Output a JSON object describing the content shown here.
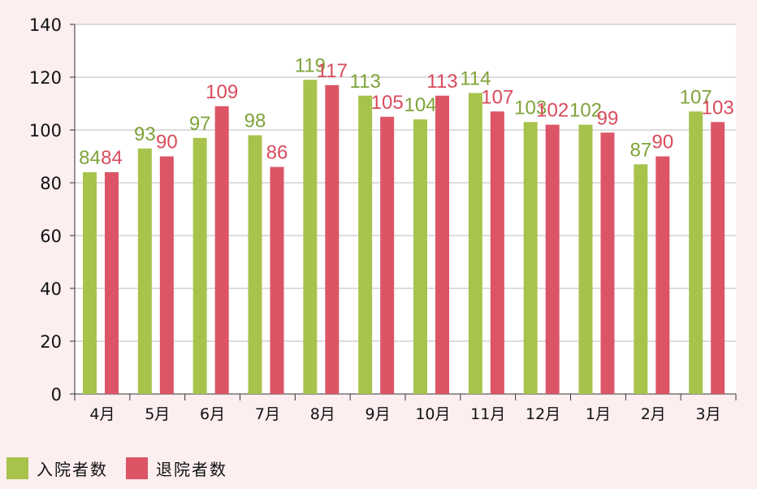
{
  "chart_data": {
    "type": "bar",
    "categories": [
      "4月",
      "5月",
      "6月",
      "7月",
      "8月",
      "9月",
      "10月",
      "11月",
      "12月",
      "1月",
      "2月",
      "3月"
    ],
    "series": [
      {
        "name": "入院者数",
        "color": "#a7c34c",
        "values": [
          84,
          93,
          97,
          98,
          119,
          113,
          104,
          114,
          103,
          102,
          87,
          107
        ]
      },
      {
        "name": "退院者数",
        "color": "#dc5566",
        "values": [
          84,
          90,
          109,
          86,
          117,
          105,
          113,
          107,
          102,
          99,
          90,
          103
        ]
      }
    ],
    "yticks": [
      0,
      20,
      40,
      60,
      80,
      100,
      120,
      140
    ],
    "ylim": [
      0,
      140
    ],
    "grid": true,
    "legend_position": "bottom-left",
    "data_labels": true
  },
  "colors": {
    "background": "#fdeef0",
    "plot_background": "#ffffff",
    "grid": "#bbbbbb",
    "axis": "#333333",
    "admission_label": "#7fa33a",
    "discharge_label": "#d94b5c"
  }
}
